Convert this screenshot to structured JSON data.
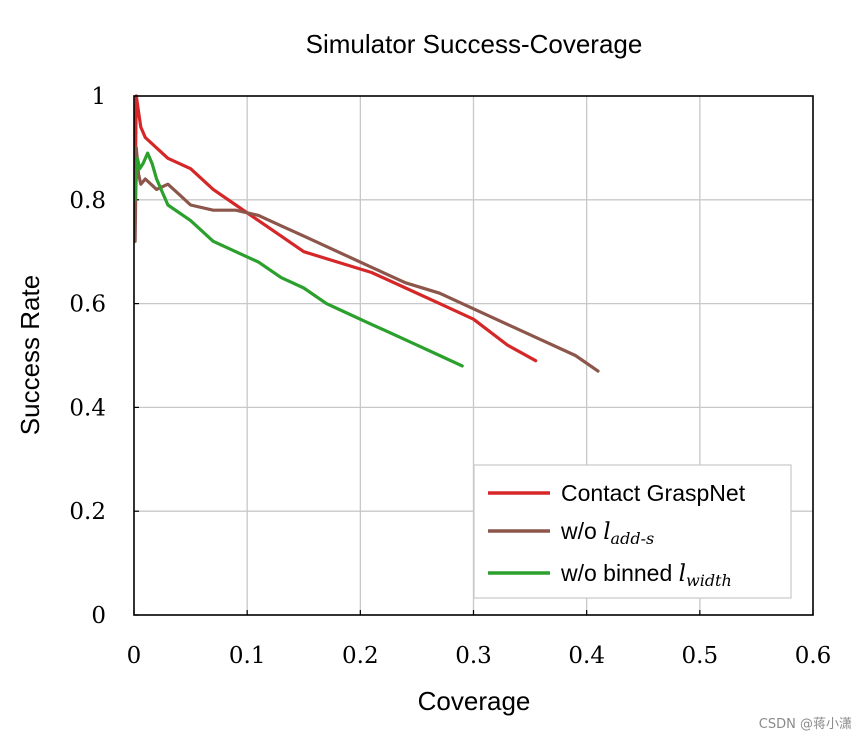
{
  "chart_data": {
    "type": "line",
    "title": "Simulator Success-Coverage",
    "xlabel": "Coverage",
    "ylabel": "Success Rate",
    "xlim": [
      0,
      0.6
    ],
    "ylim": [
      0,
      1
    ],
    "x_ticks": [
      "0",
      "0.1",
      "0.2",
      "0.3",
      "0.4",
      "0.5",
      "0.6"
    ],
    "y_ticks": [
      "0",
      "0.2",
      "0.4",
      "0.6",
      "0.8",
      "1"
    ],
    "grid": true,
    "legend_position": "bottom-right",
    "series": [
      {
        "name": "Contact GraspNet",
        "legend_text": "Contact GraspNet",
        "legend_math": "",
        "color": "#d62728",
        "x": [
          0.001,
          0.002,
          0.004,
          0.006,
          0.01,
          0.02,
          0.03,
          0.05,
          0.07,
          0.09,
          0.11,
          0.13,
          0.15,
          0.18,
          0.21,
          0.24,
          0.27,
          0.3,
          0.33,
          0.355
        ],
        "y": [
          0.82,
          1.0,
          0.97,
          0.94,
          0.92,
          0.9,
          0.88,
          0.86,
          0.82,
          0.79,
          0.76,
          0.73,
          0.7,
          0.68,
          0.66,
          0.63,
          0.6,
          0.57,
          0.52,
          0.49
        ]
      },
      {
        "name": "w/o l_add-s",
        "legend_text": "w/o ",
        "legend_math": "l_{add-s}",
        "color": "#8c564b",
        "x": [
          0.001,
          0.002,
          0.004,
          0.006,
          0.01,
          0.02,
          0.03,
          0.04,
          0.05,
          0.07,
          0.09,
          0.11,
          0.13,
          0.15,
          0.18,
          0.21,
          0.24,
          0.27,
          0.3,
          0.33,
          0.36,
          0.39,
          0.41
        ],
        "y": [
          0.72,
          0.9,
          0.85,
          0.83,
          0.84,
          0.82,
          0.83,
          0.81,
          0.79,
          0.78,
          0.78,
          0.77,
          0.75,
          0.73,
          0.7,
          0.67,
          0.64,
          0.62,
          0.59,
          0.56,
          0.53,
          0.5,
          0.47
        ]
      },
      {
        "name": "w/o binned l_width",
        "legend_text": "w/o binned ",
        "legend_math": "l_{width}",
        "color": "#2ca02c",
        "x": [
          0.001,
          0.003,
          0.005,
          0.008,
          0.012,
          0.016,
          0.02,
          0.03,
          0.05,
          0.07,
          0.09,
          0.11,
          0.13,
          0.15,
          0.17,
          0.19,
          0.21,
          0.23,
          0.25,
          0.27,
          0.29
        ],
        "y": [
          0.8,
          0.88,
          0.86,
          0.87,
          0.89,
          0.87,
          0.84,
          0.79,
          0.76,
          0.72,
          0.7,
          0.68,
          0.65,
          0.63,
          0.6,
          0.58,
          0.56,
          0.54,
          0.52,
          0.5,
          0.48
        ]
      }
    ]
  },
  "watermark": "CSDN @蒋小潇"
}
